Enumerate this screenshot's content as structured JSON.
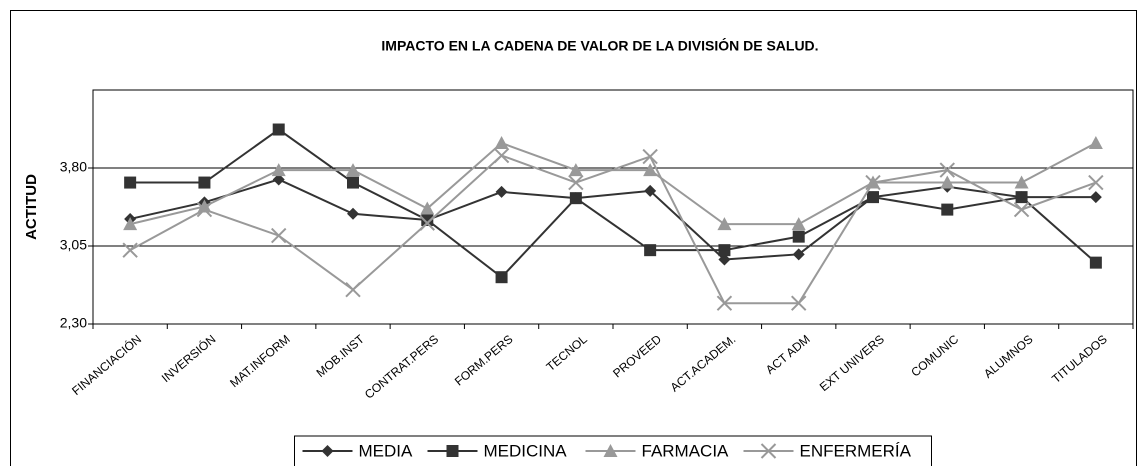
{
  "chart_data": {
    "type": "line",
    "title": "IMPACTO EN LA CADENA DE  VALOR DE LA DIVISIÓN DE  SALUD.",
    "y_label": "ACTITUD",
    "categories": [
      "FINANCIACIÓN",
      "INVERSIÓN",
      "MAT.INFORM",
      "MOB.INST",
      "CONTRAT.PERS",
      "FORM.PERS",
      "TECNOL",
      "PROVEED",
      "ACT.ACADEM.",
      "ACT ADM",
      "EXT UNIVERS",
      "COMUNIC",
      "ALUMNOS",
      "TITULADOS"
    ],
    "series": [
      {
        "name": "MEDIA",
        "color": "#333333",
        "marker": "diamond",
        "values": [
          3.31,
          3.47,
          3.69,
          3.36,
          3.3,
          3.57,
          3.51,
          3.58,
          2.92,
          2.97,
          3.52,
          3.62,
          3.52,
          3.52
        ]
      },
      {
        "name": "MEDICINA",
        "color": "#333333",
        "marker": "square",
        "values": [
          3.66,
          3.66,
          4.17,
          3.66,
          3.3,
          2.75,
          3.51,
          3.01,
          3.01,
          3.14,
          3.52,
          3.4,
          3.52,
          2.89
        ]
      },
      {
        "name": "FARMACIA",
        "color": "#999999",
        "marker": "triangle",
        "values": [
          3.26,
          3.43,
          3.78,
          3.78,
          3.41,
          4.04,
          3.78,
          3.78,
          3.26,
          3.26,
          3.66,
          3.66,
          3.66,
          4.04
        ]
      },
      {
        "name": "ENFERMERÍA",
        "color": "#999999",
        "marker": "x",
        "values": [
          3.01,
          3.4,
          3.15,
          2.63,
          3.27,
          3.92,
          3.66,
          3.91,
          2.5,
          2.5,
          3.66,
          3.78,
          3.4,
          3.66
        ]
      }
    ],
    "ylim": [
      2.3,
      4.55
    ],
    "yticks": [
      {
        "value": 2.3,
        "label": "2,30"
      },
      {
        "value": 3.05,
        "label": "3,05"
      },
      {
        "value": 3.8,
        "label": "3,80"
      }
    ],
    "grid": true,
    "legend": "bottom"
  }
}
